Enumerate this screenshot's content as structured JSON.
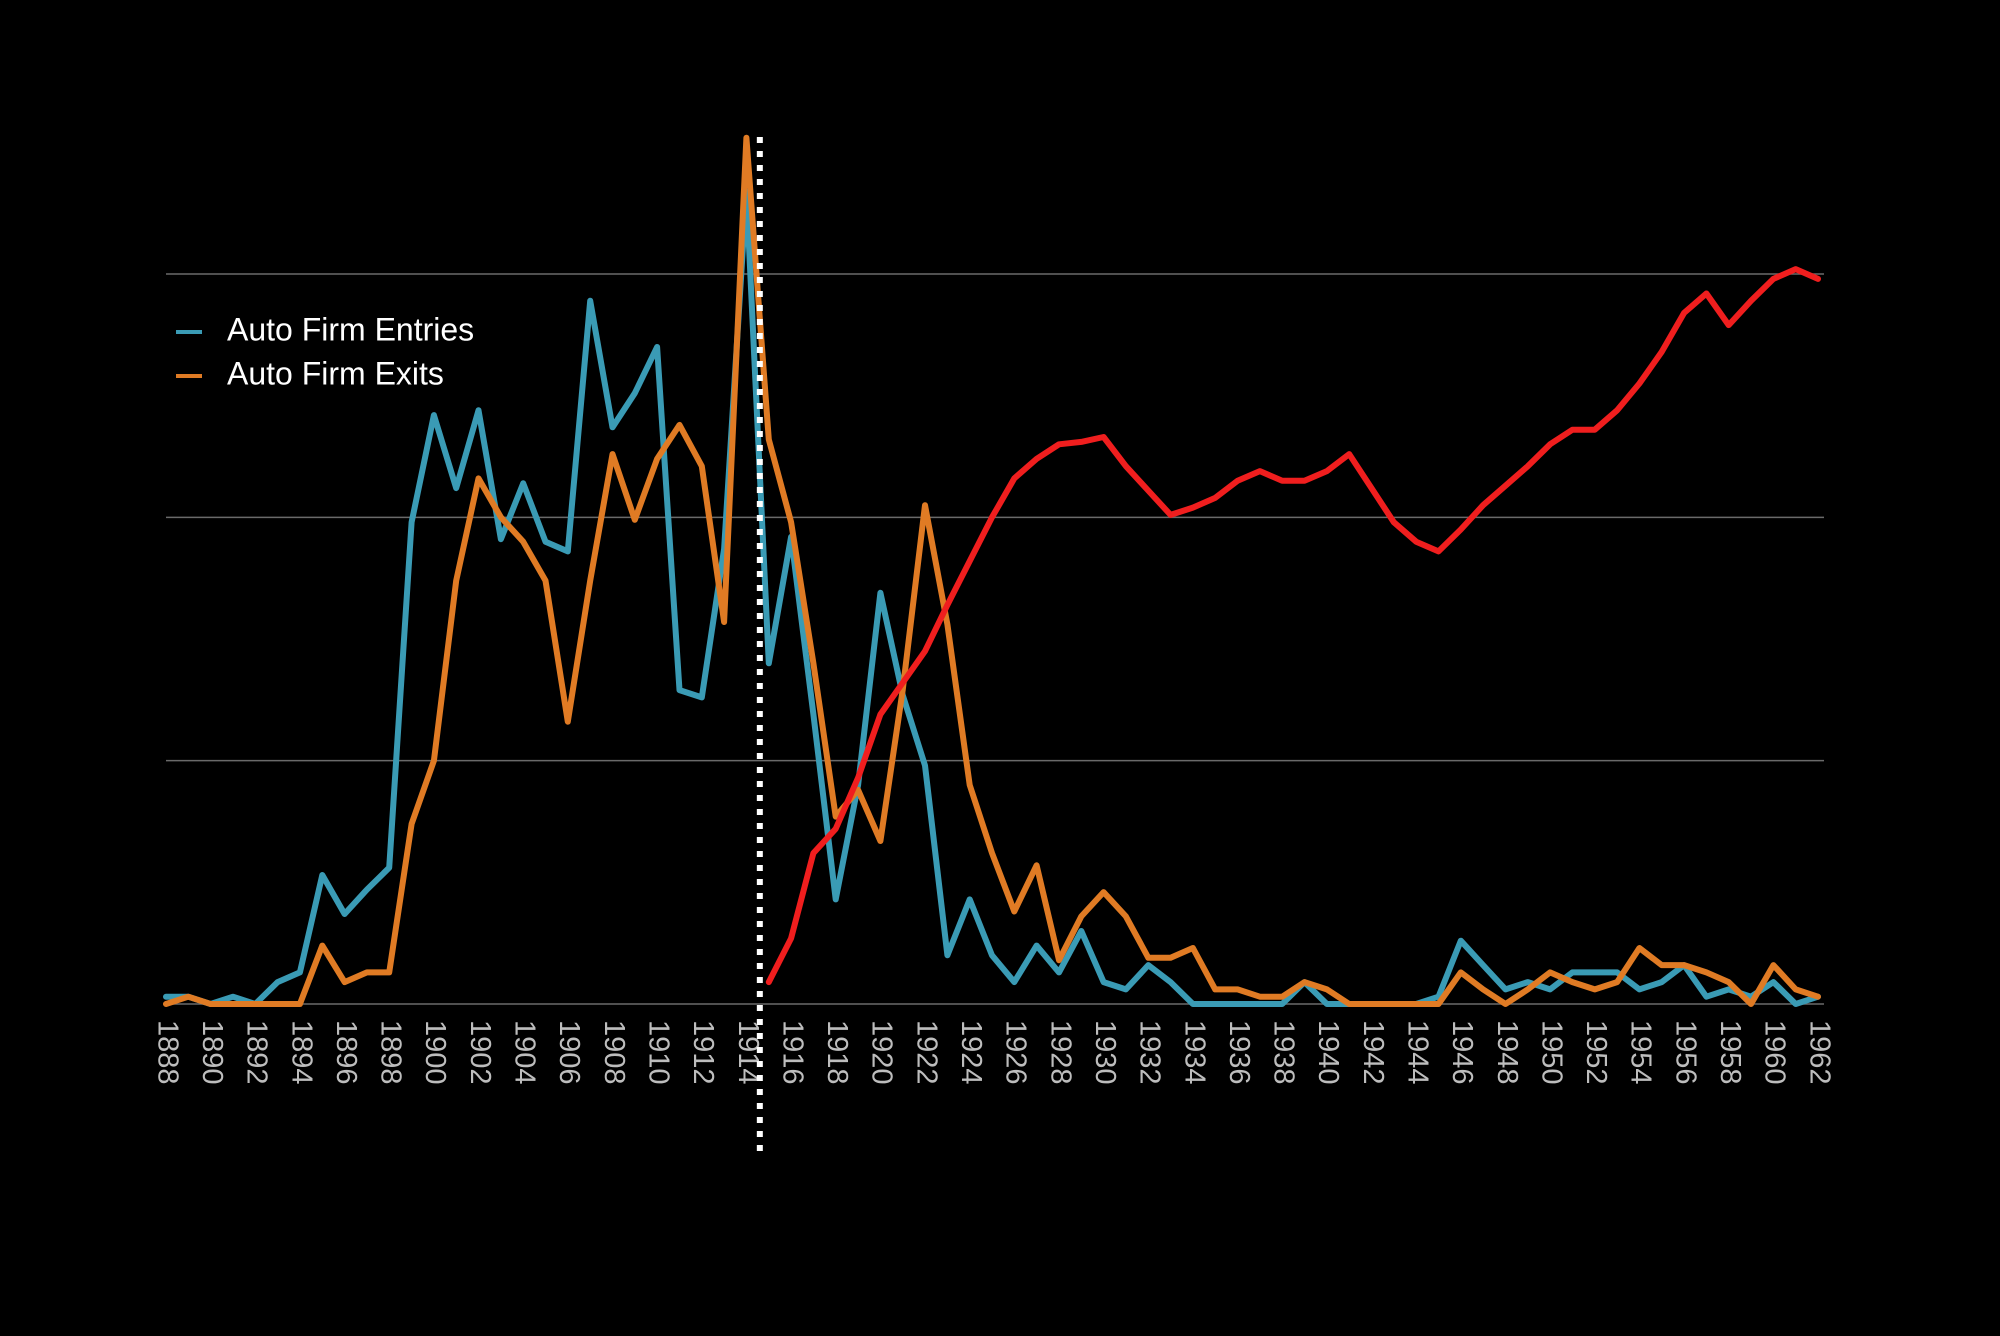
{
  "chart_data": {
    "type": "line",
    "x": [
      1888,
      1889,
      1890,
      1891,
      1892,
      1893,
      1894,
      1895,
      1896,
      1897,
      1898,
      1899,
      1900,
      1901,
      1902,
      1903,
      1904,
      1905,
      1906,
      1907,
      1908,
      1909,
      1910,
      1911,
      1912,
      1913,
      1914,
      1915,
      1916,
      1917,
      1918,
      1919,
      1920,
      1921,
      1922,
      1923,
      1924,
      1925,
      1926,
      1927,
      1928,
      1929,
      1930,
      1931,
      1932,
      1933,
      1934,
      1935,
      1936,
      1937,
      1938,
      1939,
      1940,
      1941,
      1942,
      1943,
      1944,
      1945,
      1946,
      1947,
      1948,
      1949,
      1950,
      1951,
      1952,
      1953,
      1954,
      1955,
      1956,
      1957,
      1958,
      1959,
      1960,
      1961,
      1962
    ],
    "xlim": [
      1888,
      1962
    ],
    "xticks": [
      1888,
      1890,
      1892,
      1894,
      1896,
      1898,
      1900,
      1902,
      1904,
      1906,
      1908,
      1910,
      1912,
      1914,
      1916,
      1918,
      1920,
      1922,
      1924,
      1926,
      1928,
      1930,
      1932,
      1934,
      1936,
      1938,
      1940,
      1942,
      1944,
      1946,
      1948,
      1950,
      1952,
      1954,
      1956,
      1958,
      1960,
      1962
    ],
    "ylim": [
      0,
      3.6
    ],
    "ygrid": [
      0,
      1,
      2,
      3
    ],
    "vline_x": 1914.6,
    "series": [
      {
        "name": "Auto Firm Entries",
        "color": "#3a9bb5",
        "values": [
          0.03,
          0.03,
          0,
          0.03,
          0,
          0.09,
          0.13,
          0.53,
          0.37,
          0.47,
          0.56,
          1.98,
          2.42,
          2.12,
          2.44,
          1.91,
          2.14,
          1.9,
          1.86,
          2.89,
          2.37,
          2.51,
          2.7,
          1.29,
          1.26,
          1.87,
          3.34,
          1.4,
          1.92,
          1.19,
          0.43,
          0.9,
          1.69,
          1.27,
          0.98,
          0.2,
          0.43,
          0.2,
          0.09,
          0.24,
          0.13,
          0.3,
          0.09,
          0.06,
          0.16,
          0.09,
          0,
          0,
          0,
          0,
          0,
          0.09,
          0,
          0,
          0,
          0,
          0,
          0.03,
          0.26,
          0.16,
          0.06,
          0.09,
          0.06,
          0.13,
          0.13,
          0.13,
          0.06,
          0.09,
          0.16,
          0.03,
          0.06,
          0.03,
          0.09,
          0,
          0.03
        ]
      },
      {
        "name": "Auto Firm Exits",
        "color": "#e07b24",
        "values": [
          0,
          0.03,
          0,
          0,
          0,
          0,
          0,
          0.24,
          0.09,
          0.13,
          0.13,
          0.74,
          1.0,
          1.74,
          2.16,
          2.0,
          1.9,
          1.74,
          1.16,
          1.74,
          2.26,
          1.99,
          2.24,
          2.38,
          2.21,
          1.57,
          3.56,
          2.32,
          1.98,
          1.4,
          0.77,
          0.88,
          0.67,
          1.29,
          2.05,
          1.56,
          0.9,
          0.62,
          0.38,
          0.57,
          0.18,
          0.36,
          0.46,
          0.36,
          0.19,
          0.19,
          0.23,
          0.06,
          0.06,
          0.03,
          0.03,
          0.09,
          0.06,
          0,
          0,
          0,
          0,
          0,
          0.13,
          0.06,
          0,
          0.06,
          0.13,
          0.09,
          0.06,
          0.09,
          0.23,
          0.16,
          0.16,
          0.13,
          0.09,
          0,
          0.16,
          0.06,
          0.03
        ]
      },
      {
        "color": "#f01e1e",
        "values": [
          null,
          null,
          null,
          null,
          null,
          null,
          null,
          null,
          null,
          null,
          null,
          null,
          null,
          null,
          null,
          null,
          null,
          null,
          null,
          null,
          null,
          null,
          null,
          null,
          null,
          null,
          null,
          0.09,
          0.27,
          0.62,
          0.72,
          0.93,
          1.19,
          1.32,
          1.45,
          1.64,
          1.82,
          2.0,
          2.16,
          2.24,
          2.3,
          2.31,
          2.33,
          2.21,
          2.11,
          2.01,
          2.04,
          2.08,
          2.15,
          2.19,
          2.15,
          2.15,
          2.19,
          2.26,
          2.12,
          1.98,
          1.9,
          1.86,
          1.95,
          2.05,
          2.13,
          2.21,
          2.3,
          2.36,
          2.36,
          2.44,
          2.55,
          2.68,
          2.84,
          2.92,
          2.79,
          2.89,
          2.98,
          3.02,
          2.98
        ]
      }
    ]
  }
}
